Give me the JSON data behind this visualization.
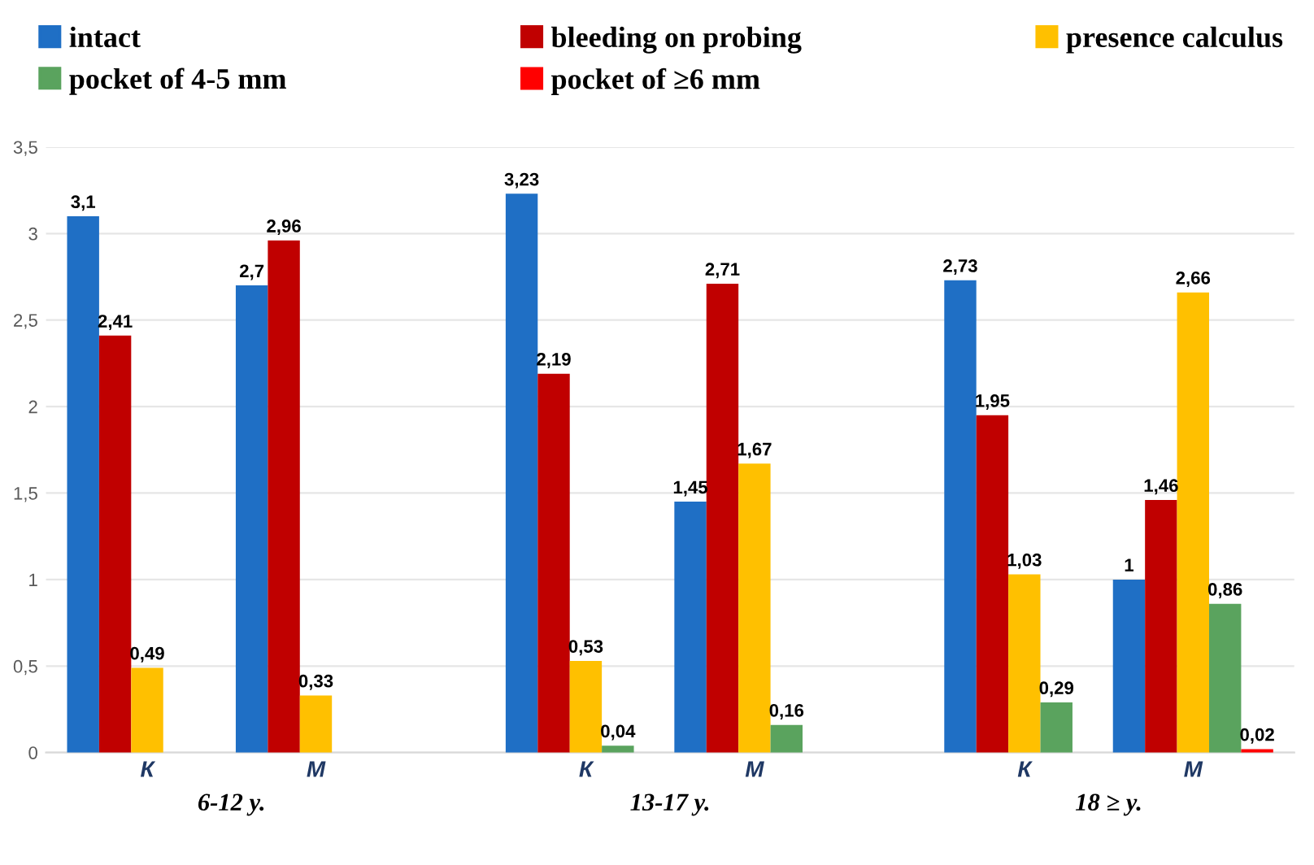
{
  "chart_data": {
    "type": "bar",
    "categories": [
      "К",
      "М",
      "К",
      "М",
      "К",
      "М"
    ],
    "annotations": [
      "6-12 y.",
      "13-17 y.",
      "18 ≥ y."
    ],
    "series": [
      {
        "name": "intact",
        "color": "#1f6fc5",
        "values": [
          3.1,
          2.7,
          3.23,
          1.45,
          2.73,
          1
        ],
        "value_labels": [
          "3,1",
          "2,7",
          "3,23",
          "1,45",
          "2,73",
          "1"
        ]
      },
      {
        "name": "bleeding on probing",
        "color": "#c00000",
        "values": [
          2.41,
          2.96,
          2.19,
          2.71,
          1.95,
          1.46
        ],
        "value_labels": [
          "2,41",
          "2,96",
          "2,19",
          "2,71",
          "1,95",
          "1,46"
        ]
      },
      {
        "name": "presence calculus",
        "color": "#ffc000",
        "values": [
          0.49,
          0.33,
          0.53,
          1.67,
          1.03,
          2.66
        ],
        "value_labels": [
          "0,49",
          "0,33",
          "0,53",
          "1,67",
          "1,03",
          "2,66"
        ]
      },
      {
        "name": "pocket of 4-5 mm",
        "color": "#5aa35e",
        "values": [
          null,
          null,
          0.04,
          0.16,
          0.29,
          0.86
        ],
        "value_labels": [
          null,
          null,
          "0,04",
          "0,16",
          "0,29",
          "0,86"
        ]
      },
      {
        "name": "pocket of ≥6 mm",
        "color": "#ff0000",
        "values": [
          null,
          null,
          null,
          null,
          null,
          0.02
        ],
        "value_labels": [
          null,
          null,
          null,
          null,
          null,
          "0,02"
        ]
      }
    ],
    "ylim": [
      0,
      3.5
    ],
    "yticks": [
      0,
      {
        "value": 0.5,
        "label": "0,5"
      },
      1,
      {
        "value": 1.5,
        "label": "1,5"
      },
      2,
      {
        "value": 2.5,
        "label": "2,5"
      },
      3,
      {
        "value": 3.5,
        "label": "3,5"
      }
    ],
    "grid": "y",
    "legend": "top"
  }
}
